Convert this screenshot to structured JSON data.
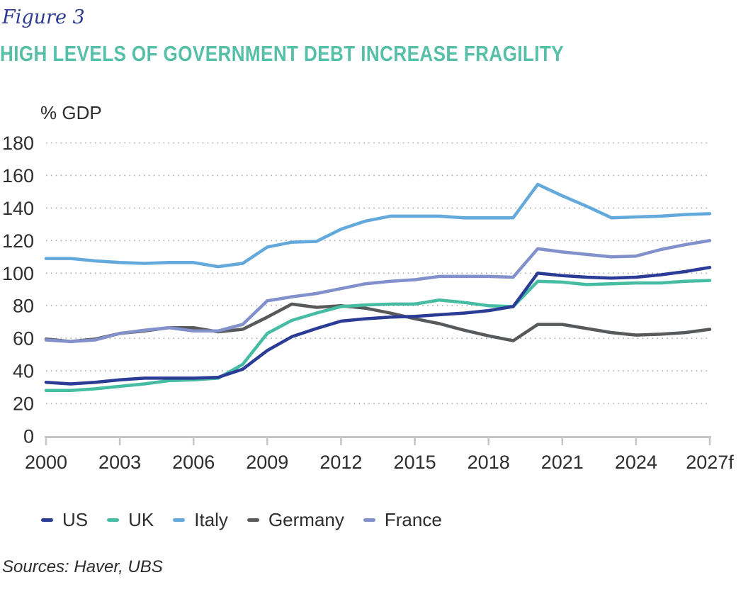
{
  "figure_label": "Figure 3",
  "title": "HIGH LEVELS OF GOVERNMENT DEBT INCREASE FRAGILITY",
  "source": "Sources: Haver, UBS",
  "colors": {
    "figure_label_text": "#2e3a92",
    "title_text": "#56bfa8",
    "axis_text": "#2e2e2e",
    "grid_dots": "#a6a6a6",
    "axis_line": "#c5c5c5",
    "background": "#ffffff"
  },
  "chart_data": {
    "type": "line",
    "title": "HIGH LEVELS OF GOVERNMENT DEBT INCREASE FRAGILITY",
    "ylabel": "% GDP",
    "xlabel": "",
    "ylim": [
      0,
      180
    ],
    "yticks": [
      0,
      20,
      40,
      60,
      80,
      100,
      120,
      140,
      160,
      180
    ],
    "xticks": [
      2000,
      2003,
      2006,
      2009,
      2012,
      2015,
      2018,
      2021,
      2024,
      2027
    ],
    "xtick_labels": [
      "2000",
      "2003",
      "2006",
      "2009",
      "2012",
      "2015",
      "2018",
      "2021",
      "2024",
      "2027f"
    ],
    "grid": "dotted horizontal gridlines",
    "legend_position": "bottom",
    "x": [
      2000,
      2001,
      2002,
      2003,
      2004,
      2005,
      2006,
      2007,
      2008,
      2009,
      2010,
      2011,
      2012,
      2013,
      2014,
      2015,
      2016,
      2017,
      2018,
      2019,
      2020,
      2021,
      2022,
      2023,
      2024,
      2025,
      2026,
      2027
    ],
    "series": [
      {
        "name": "US",
        "color": "#2b3c97",
        "values": [
          33,
          32,
          33,
          34.5,
          35.5,
          35.5,
          35.5,
          36,
          41,
          52.5,
          61,
          66,
          70.5,
          72,
          73,
          73.5,
          74.5,
          75.5,
          77,
          79.5,
          100,
          98.5,
          97.5,
          97,
          97.5,
          99,
          101,
          103.5
        ]
      },
      {
        "name": "UK",
        "color": "#46bda3",
        "values": [
          28,
          28,
          29,
          30.5,
          32,
          34,
          34.5,
          35.5,
          44,
          63,
          71,
          75.5,
          79.5,
          80.5,
          81,
          81,
          83.5,
          82,
          80,
          79.5,
          95,
          94.5,
          93,
          93.5,
          94,
          94,
          95,
          95.5
        ]
      },
      {
        "name": "Italy",
        "color": "#64a9dc",
        "values": [
          109,
          109,
          107.5,
          106.5,
          106,
          106.5,
          106.5,
          104,
          106,
          116,
          119,
          119.5,
          127,
          132,
          135,
          135,
          135,
          134,
          134,
          134,
          154.5,
          147.5,
          141,
          134,
          134.5,
          135,
          136,
          136.5
        ]
      },
      {
        "name": "Germany",
        "color": "#58595b",
        "values": [
          59.5,
          58,
          59.5,
          63,
          64.5,
          66.5,
          66.5,
          64,
          65.5,
          73,
          81,
          79,
          80,
          78.5,
          75.5,
          72,
          69,
          65,
          61.5,
          58.5,
          68.5,
          68.5,
          66,
          63.5,
          62,
          62.5,
          63.5,
          65.5
        ]
      },
      {
        "name": "France",
        "color": "#8291cb",
        "values": [
          59,
          58,
          59,
          63,
          65,
          66.5,
          64.5,
          64.5,
          68.5,
          83,
          85.5,
          87.5,
          90.5,
          93.5,
          95,
          96,
          98,
          98,
          98,
          97.5,
          115,
          113,
          111.5,
          110,
          110.5,
          114.5,
          117.5,
          120
        ]
      }
    ]
  }
}
